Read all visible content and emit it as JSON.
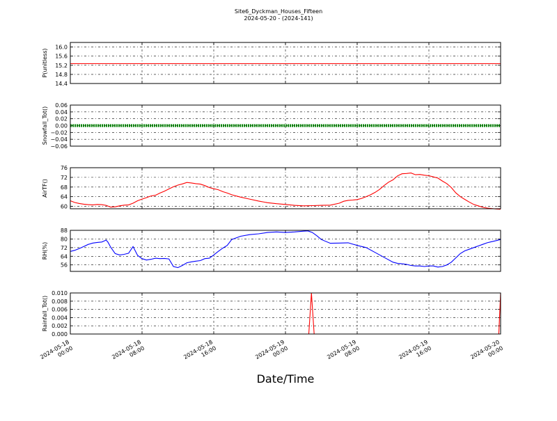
{
  "figure": {
    "title": "Site6_Dyckman_Houses_Fifteen",
    "subtitle": "2024-05-20 - (2024-141)",
    "xlabel": "Date/Time"
  },
  "chart_data": [
    {
      "type": "line",
      "ylabel": "P(unitless)",
      "ylim": [
        14.4,
        16.2
      ],
      "yticks": [
        "14.4",
        "14.8",
        "15.2",
        "15.6",
        "16.0"
      ],
      "yvals": [
        14.4,
        14.8,
        15.2,
        15.6,
        16.0
      ],
      "xticks": [
        "2024-05-18 00:00",
        "2024-05-18 08:00",
        "2024-05-18 16:00",
        "2024-05-19 00:00",
        "2024-05-19 08:00",
        "2024-05-19 16:00",
        "2024-05-20 00:00"
      ],
      "grid": true,
      "color": "#ff0000",
      "series": [
        {
          "x": [
            0,
            48
          ],
          "y": [
            15.27,
            15.27
          ]
        }
      ]
    },
    {
      "type": "line",
      "ylabel": "Snowfall_Tot()",
      "ylim": [
        -0.06,
        0.06
      ],
      "yticks": [
        "−0.06",
        "−0.04",
        "−0.02",
        "0.00",
        "0.02",
        "0.04",
        "0.06"
      ],
      "yvals": [
        -0.06,
        -0.04,
        -0.02,
        0.0,
        0.02,
        0.04,
        0.06
      ],
      "grid": true,
      "color": "#008000",
      "markers": true,
      "series": [
        {
          "x": [
            0,
            48
          ],
          "y": [
            0,
            0
          ]
        }
      ]
    },
    {
      "type": "line",
      "ylabel": "AirTF()",
      "ylim": [
        59,
        76
      ],
      "yticks": [
        "60",
        "64",
        "68",
        "72",
        "76"
      ],
      "yvals": [
        60,
        64,
        68,
        72,
        76
      ],
      "grid": true,
      "color": "#ff0000",
      "series": [
        {
          "x": [
            0,
            0.5,
            1,
            1.5,
            2,
            2.5,
            3,
            3.5,
            4,
            4.5,
            5,
            5.5,
            6,
            6.5,
            7,
            7.5,
            8,
            8.5,
            9,
            9.5,
            10,
            10.5,
            11,
            11.5,
            12,
            12.5,
            13,
            13.5,
            14,
            14.5,
            15,
            15.5,
            16,
            16.5,
            17,
            17.5,
            18,
            19,
            20,
            21,
            22,
            23,
            24,
            25,
            26,
            27,
            28,
            29,
            30,
            30.5,
            31,
            31.5,
            32,
            32.5,
            33,
            33.5,
            34,
            34.5,
            35,
            35.5,
            36,
            36.5,
            37,
            37.5,
            38,
            38.5,
            39,
            39.5,
            40,
            40.5,
            41,
            41.5,
            42,
            42.5,
            43,
            43.5,
            44,
            44.5,
            45,
            45.5,
            46,
            46.5,
            47,
            47.5,
            48
          ],
          "y": [
            62.3,
            61.6,
            61.2,
            60.9,
            60.7,
            60.6,
            60.8,
            60.7,
            60.4,
            59.7,
            59.8,
            60.2,
            60.5,
            60.6,
            61.3,
            62.3,
            63.0,
            63.6,
            64.3,
            64.6,
            65.5,
            66.3,
            67.2,
            68.1,
            68.8,
            69.3,
            69.9,
            69.7,
            69.4,
            69.2,
            68.6,
            67.8,
            67.3,
            66.9,
            66.1,
            65.5,
            64.8,
            63.8,
            63.0,
            62.2,
            61.5,
            61.1,
            60.8,
            60.4,
            60.2,
            60.3,
            60.4,
            60.5,
            61.3,
            62.1,
            62.5,
            62.6,
            62.8,
            63.3,
            64.0,
            64.8,
            65.8,
            67.0,
            68.6,
            70.0,
            71.0,
            72.6,
            73.5,
            73.6,
            73.8,
            73.1,
            73.2,
            72.9,
            72.7,
            72.2,
            71.7,
            70.5,
            69.4,
            67.8,
            65.6,
            64.0,
            62.9,
            61.8,
            60.8,
            60.2,
            59.6,
            59.3,
            59.1,
            58.9,
            58.8
          ]
        }
      ]
    },
    {
      "type": "line",
      "ylabel": "RH(%)",
      "ylim": [
        50,
        88
      ],
      "yticks": [
        "56",
        "64",
        "72",
        "80",
        "88"
      ],
      "yvals": [
        56,
        64,
        72,
        80,
        88
      ],
      "grid": true,
      "color": "#0000ff",
      "series": [
        {
          "x": [
            0,
            0.5,
            1,
            1.5,
            2,
            2.5,
            3,
            3.5,
            4,
            4.2,
            4.5,
            5,
            5.5,
            6,
            6.5,
            7,
            7.5,
            8,
            8.5,
            9,
            9.5,
            10,
            10.5,
            11,
            11.5,
            12,
            12.5,
            13,
            13.5,
            14,
            14.5,
            15,
            15.5,
            16,
            16.5,
            17,
            17.5,
            18,
            19,
            20,
            21,
            22,
            23,
            24,
            25,
            26,
            26.5,
            27,
            27.5,
            28,
            29,
            30,
            31,
            32,
            33,
            34,
            35,
            36,
            36.5,
            37,
            37.5,
            38,
            38.5,
            39,
            39.5,
            40,
            40.5,
            41,
            41.5,
            42,
            42.5,
            43,
            43.5,
            44,
            44.5,
            45,
            45.5,
            46,
            46.5,
            47,
            47.5,
            48
          ],
          "y": [
            68.5,
            69.5,
            71.2,
            73.0,
            75.0,
            76.2,
            76.8,
            77.2,
            79.0,
            77.0,
            72.5,
            66.5,
            65.2,
            65.8,
            66.8,
            73.0,
            64.8,
            61.8,
            60.5,
            61.2,
            62.2,
            61.8,
            62.0,
            61.5,
            54.5,
            53.5,
            55.5,
            58.0,
            58.8,
            59.5,
            60.0,
            61.8,
            62.2,
            65.2,
            68.5,
            71.5,
            74.0,
            79.5,
            82.5,
            84.0,
            84.8,
            86.0,
            86.5,
            86.0,
            86.5,
            87.2,
            87.5,
            86.0,
            83.0,
            79.5,
            76.0,
            76.2,
            76.5,
            74.0,
            72.0,
            67.5,
            63.0,
            58.5,
            57.5,
            57.0,
            56.5,
            55.5,
            55.0,
            55.0,
            54.5,
            55.0,
            55.0,
            54.0,
            54.5,
            56.0,
            58.5,
            62.5,
            66.5,
            69.0,
            70.5,
            72.0,
            73.5,
            75.0,
            76.5,
            77.5,
            78.5,
            79.5
          ]
        }
      ]
    },
    {
      "type": "line",
      "ylabel": "Rainfall_Tot()",
      "ylim": [
        0,
        0.01
      ],
      "yticks": [
        "0.000",
        "0.002",
        "0.004",
        "0.006",
        "0.008",
        "0.010"
      ],
      "yvals": [
        0,
        0.002,
        0.004,
        0.006,
        0.008,
        0.01
      ],
      "grid": true,
      "color": "#ff0000",
      "series": [
        {
          "x": [
            0,
            26.6,
            26.9,
            27.2,
            47.8,
            48
          ],
          "y": [
            0,
            0,
            0.01,
            0,
            0,
            0.01
          ]
        }
      ]
    }
  ]
}
